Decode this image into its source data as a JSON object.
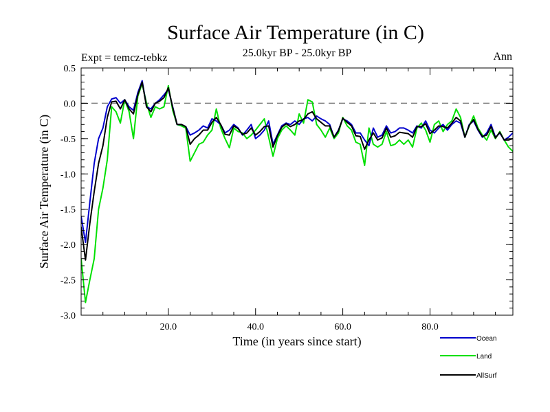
{
  "chart_data": {
    "type": "line",
    "title": "Surface Air Temperature (in C)",
    "subtitle": "25.0kyr BP - 25.0kyr BP",
    "left_label": "Expt = temcz-tebkz",
    "right_label": "Ann",
    "xlabel": "Time (in years since start)",
    "ylabel": "Surface Air Temperature (in C)",
    "xlim": [
      0,
      99
    ],
    "ylim": [
      -3.0,
      0.5
    ],
    "x_ticks": [
      20,
      40,
      60,
      80
    ],
    "x_tick_labels": [
      "20.0",
      "40.0",
      "60.0",
      "80.0"
    ],
    "y_ticks": [
      0.5,
      0.0,
      -0.5,
      -1.0,
      -1.5,
      -2.0,
      -2.5,
      -3.0
    ],
    "y_tick_labels": [
      "0.5",
      "0.0",
      "-0.5",
      "-1.0",
      "-1.5",
      "-2.0",
      "-2.5",
      "-3.0"
    ],
    "reference_line": 0.0,
    "x": [
      0,
      1,
      2,
      3,
      4,
      5,
      6,
      7,
      8,
      9,
      10,
      11,
      12,
      13,
      14,
      15,
      16,
      17,
      18,
      19,
      20,
      21,
      22,
      23,
      24,
      25,
      26,
      27,
      28,
      29,
      30,
      31,
      32,
      33,
      34,
      35,
      36,
      37,
      38,
      39,
      40,
      41,
      42,
      43,
      44,
      45,
      46,
      47,
      48,
      49,
      50,
      51,
      52,
      53,
      54,
      55,
      56,
      57,
      58,
      59,
      60,
      61,
      62,
      63,
      64,
      65,
      66,
      67,
      68,
      69,
      70,
      71,
      72,
      73,
      74,
      75,
      76,
      77,
      78,
      79,
      80,
      81,
      82,
      83,
      84,
      85,
      86,
      87,
      88,
      89,
      90,
      91,
      92,
      93,
      94,
      95,
      96,
      97,
      98,
      99
    ],
    "series": [
      {
        "name": "Ocean",
        "color": "#0000cc",
        "values": [
          -1.6,
          -1.97,
          -1.4,
          -0.85,
          -0.5,
          -0.35,
          -0.05,
          0.06,
          0.08,
          0.0,
          0.05,
          -0.05,
          -0.1,
          0.15,
          0.32,
          -0.05,
          -0.08,
          0.0,
          0.05,
          0.12,
          0.2,
          -0.05,
          -0.3,
          -0.3,
          -0.33,
          -0.45,
          -0.42,
          -0.38,
          -0.32,
          -0.35,
          -0.22,
          -0.25,
          -0.3,
          -0.42,
          -0.38,
          -0.3,
          -0.35,
          -0.45,
          -0.38,
          -0.3,
          -0.5,
          -0.45,
          -0.38,
          -0.25,
          -0.58,
          -0.45,
          -0.32,
          -0.28,
          -0.3,
          -0.25,
          -0.3,
          -0.22,
          -0.2,
          -0.25,
          -0.18,
          -0.22,
          -0.25,
          -0.3,
          -0.48,
          -0.38,
          -0.22,
          -0.25,
          -0.3,
          -0.42,
          -0.42,
          -0.52,
          -0.6,
          -0.35,
          -0.48,
          -0.45,
          -0.32,
          -0.42,
          -0.4,
          -0.35,
          -0.35,
          -0.38,
          -0.42,
          -0.32,
          -0.35,
          -0.25,
          -0.38,
          -0.42,
          -0.35,
          -0.3,
          -0.38,
          -0.3,
          -0.25,
          -0.28,
          -0.48,
          -0.3,
          -0.25,
          -0.38,
          -0.48,
          -0.42,
          -0.3,
          -0.48,
          -0.42,
          -0.52,
          -0.48,
          -0.42
        ]
      },
      {
        "name": "Land",
        "color": "#00e000",
        "values": [
          -2.2,
          -2.82,
          -2.5,
          -2.2,
          -1.5,
          -1.2,
          -0.8,
          -0.05,
          -0.12,
          -0.28,
          0.05,
          -0.12,
          -0.5,
          0.1,
          0.28,
          0.0,
          -0.2,
          -0.05,
          -0.08,
          -0.05,
          0.25,
          -0.1,
          -0.3,
          -0.32,
          -0.35,
          -0.82,
          -0.7,
          -0.58,
          -0.55,
          -0.45,
          -0.38,
          -0.08,
          -0.35,
          -0.5,
          -0.63,
          -0.35,
          -0.4,
          -0.42,
          -0.5,
          -0.45,
          -0.38,
          -0.3,
          -0.22,
          -0.48,
          -0.75,
          -0.5,
          -0.38,
          -0.32,
          -0.38,
          -0.45,
          -0.15,
          -0.28,
          0.05,
          0.02,
          -0.3,
          -0.38,
          -0.48,
          -0.35,
          -0.5,
          -0.42,
          -0.2,
          -0.32,
          -0.38,
          -0.55,
          -0.58,
          -0.88,
          -0.35,
          -0.58,
          -0.62,
          -0.58,
          -0.4,
          -0.6,
          -0.58,
          -0.52,
          -0.58,
          -0.52,
          -0.62,
          -0.35,
          -0.28,
          -0.38,
          -0.55,
          -0.3,
          -0.25,
          -0.4,
          -0.3,
          -0.25,
          -0.08,
          -0.2,
          -0.48,
          -0.32,
          -0.18,
          -0.35,
          -0.45,
          -0.52,
          -0.38,
          -0.5,
          -0.4,
          -0.52,
          -0.62,
          -0.68
        ]
      },
      {
        "name": "AllSurf",
        "color": "#000000",
        "values": [
          -1.75,
          -2.22,
          -1.7,
          -1.25,
          -0.85,
          -0.6,
          -0.2,
          0.02,
          0.03,
          -0.08,
          0.05,
          -0.08,
          -0.15,
          0.12,
          0.3,
          -0.05,
          -0.12,
          0.0,
          0.03,
          0.08,
          0.22,
          -0.06,
          -0.3,
          -0.3,
          -0.33,
          -0.58,
          -0.5,
          -0.45,
          -0.38,
          -0.38,
          -0.27,
          -0.2,
          -0.3,
          -0.44,
          -0.45,
          -0.32,
          -0.36,
          -0.44,
          -0.42,
          -0.35,
          -0.45,
          -0.4,
          -0.33,
          -0.32,
          -0.62,
          -0.46,
          -0.34,
          -0.29,
          -0.33,
          -0.3,
          -0.25,
          -0.23,
          -0.15,
          -0.12,
          -0.22,
          -0.27,
          -0.32,
          -0.32,
          -0.48,
          -0.39,
          -0.21,
          -0.27,
          -0.32,
          -0.46,
          -0.47,
          -0.65,
          -0.52,
          -0.42,
          -0.52,
          -0.49,
          -0.35,
          -0.48,
          -0.46,
          -0.41,
          -0.42,
          -0.43,
          -0.48,
          -0.33,
          -0.33,
          -0.29,
          -0.43,
          -0.38,
          -0.32,
          -0.33,
          -0.35,
          -0.28,
          -0.2,
          -0.25,
          -0.48,
          -0.31,
          -0.23,
          -0.37,
          -0.47,
          -0.45,
          -0.33,
          -0.49,
          -0.41,
          -0.52,
          -0.52,
          -0.5
        ]
      }
    ],
    "legend": [
      "Ocean",
      "Land",
      "AllSurf"
    ],
    "legend_position": "bottom-right"
  }
}
